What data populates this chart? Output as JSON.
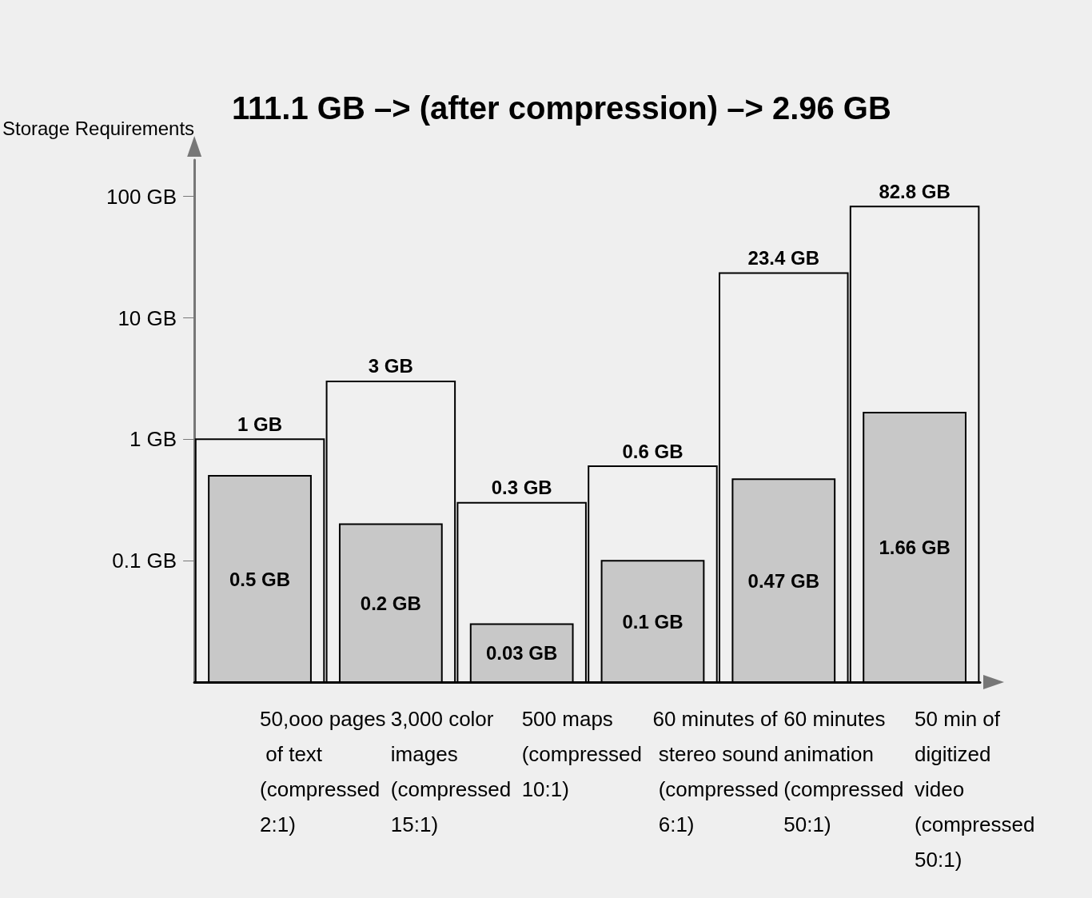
{
  "chart_data": {
    "type": "bar",
    "title": "111.1 GB –> (after compression) –> 2.96 GB",
    "ylabel": "Storage Requirements",
    "categories": [
      "50,ooo pages of text (compressed 2:1)",
      "3,000 color images (compressed 15:1)",
      "500 maps (compressed 10:1)",
      "60 minutes of stereo sound (compressed 6:1)",
      "60 minutes animation (compressed 50:1)",
      "50 min of digitized video (compressed 50:1)"
    ],
    "series": [
      {
        "color": "#f0f0f0",
        "values": [
          1,
          3,
          0.3,
          0.6,
          23.4,
          82.8
        ],
        "value_labels": [
          "1 GB",
          "3 GB",
          "0.3 GB",
          "0.6 GB",
          "23.4 GB",
          "82.8 GB"
        ]
      },
      {
        "color": "#c8c8c8",
        "values": [
          0.5,
          0.2,
          0.03,
          0.1,
          0.47,
          1.66
        ],
        "value_labels": [
          "0.5 GB",
          "0.2 GB",
          "0.03 GB",
          "0.1 GB",
          "0.47 GB",
          "1.66 GB"
        ]
      }
    ],
    "log": "y",
    "ylim": [
      0.01,
      200
    ],
    "yticks": [
      {
        "value": 0.1,
        "label": "0.1 GB"
      },
      {
        "value": 1,
        "label": "1 GB"
      },
      {
        "value": 10,
        "label": "10 GB"
      },
      {
        "value": 100,
        "label": "100 GB"
      }
    ],
    "grid": false
  }
}
